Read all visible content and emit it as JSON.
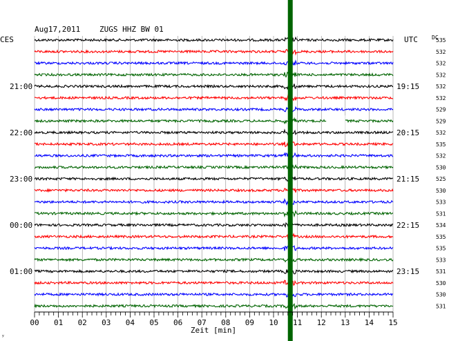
{
  "header": {
    "date": "Aug17,2011",
    "station": "ZUGS HHZ BW 01"
  },
  "left_label": "CES",
  "right_label": "UTC",
  "dc_label": "DC",
  "xlabel": "Zeit [min]",
  "corner_mark": "ʸ",
  "colors": {
    "background": "#ffffff",
    "grid": "#000000",
    "trace_cycle": [
      "#000000",
      "#ff0000",
      "#0000ff",
      "#006400"
    ],
    "event_bar": "#006400"
  },
  "chart_data": {
    "type": "line",
    "title": "Aug17,2011   ZUGS HHZ BW 01",
    "xlabel": "Zeit [min]",
    "xlim": [
      0,
      15
    ],
    "x_ticks": [
      "00",
      "01",
      "02",
      "03",
      "04",
      "05",
      "06",
      "07",
      "08",
      "09",
      "10",
      "11",
      "12",
      "13",
      "14",
      "15"
    ],
    "rows": 24,
    "minutes_per_row": 15,
    "left_time_labels": [
      {
        "row": 4,
        "label": "21:00"
      },
      {
        "row": 8,
        "label": "22:00"
      },
      {
        "row": 12,
        "label": "23:00"
      },
      {
        "row": 16,
        "label": "00:00"
      },
      {
        "row": 20,
        "label": "01:00"
      }
    ],
    "right_time_labels": [
      {
        "row": 4,
        "label": "19:15"
      },
      {
        "row": 8,
        "label": "20:15"
      },
      {
        "row": 12,
        "label": "21:15"
      },
      {
        "row": 16,
        "label": "22:15"
      },
      {
        "row": 20,
        "label": "23:15"
      }
    ],
    "dc_offsets": [
      535,
      532,
      532,
      532,
      532,
      532,
      529,
      529,
      532,
      535,
      532,
      530,
      525,
      530,
      533,
      531,
      534,
      535,
      535,
      533,
      531,
      530,
      530,
      531
    ],
    "event": {
      "minute": 10.7
    },
    "data_gap": {
      "row": 7,
      "start_minute": 12.2,
      "end_minute": 13.0
    }
  }
}
